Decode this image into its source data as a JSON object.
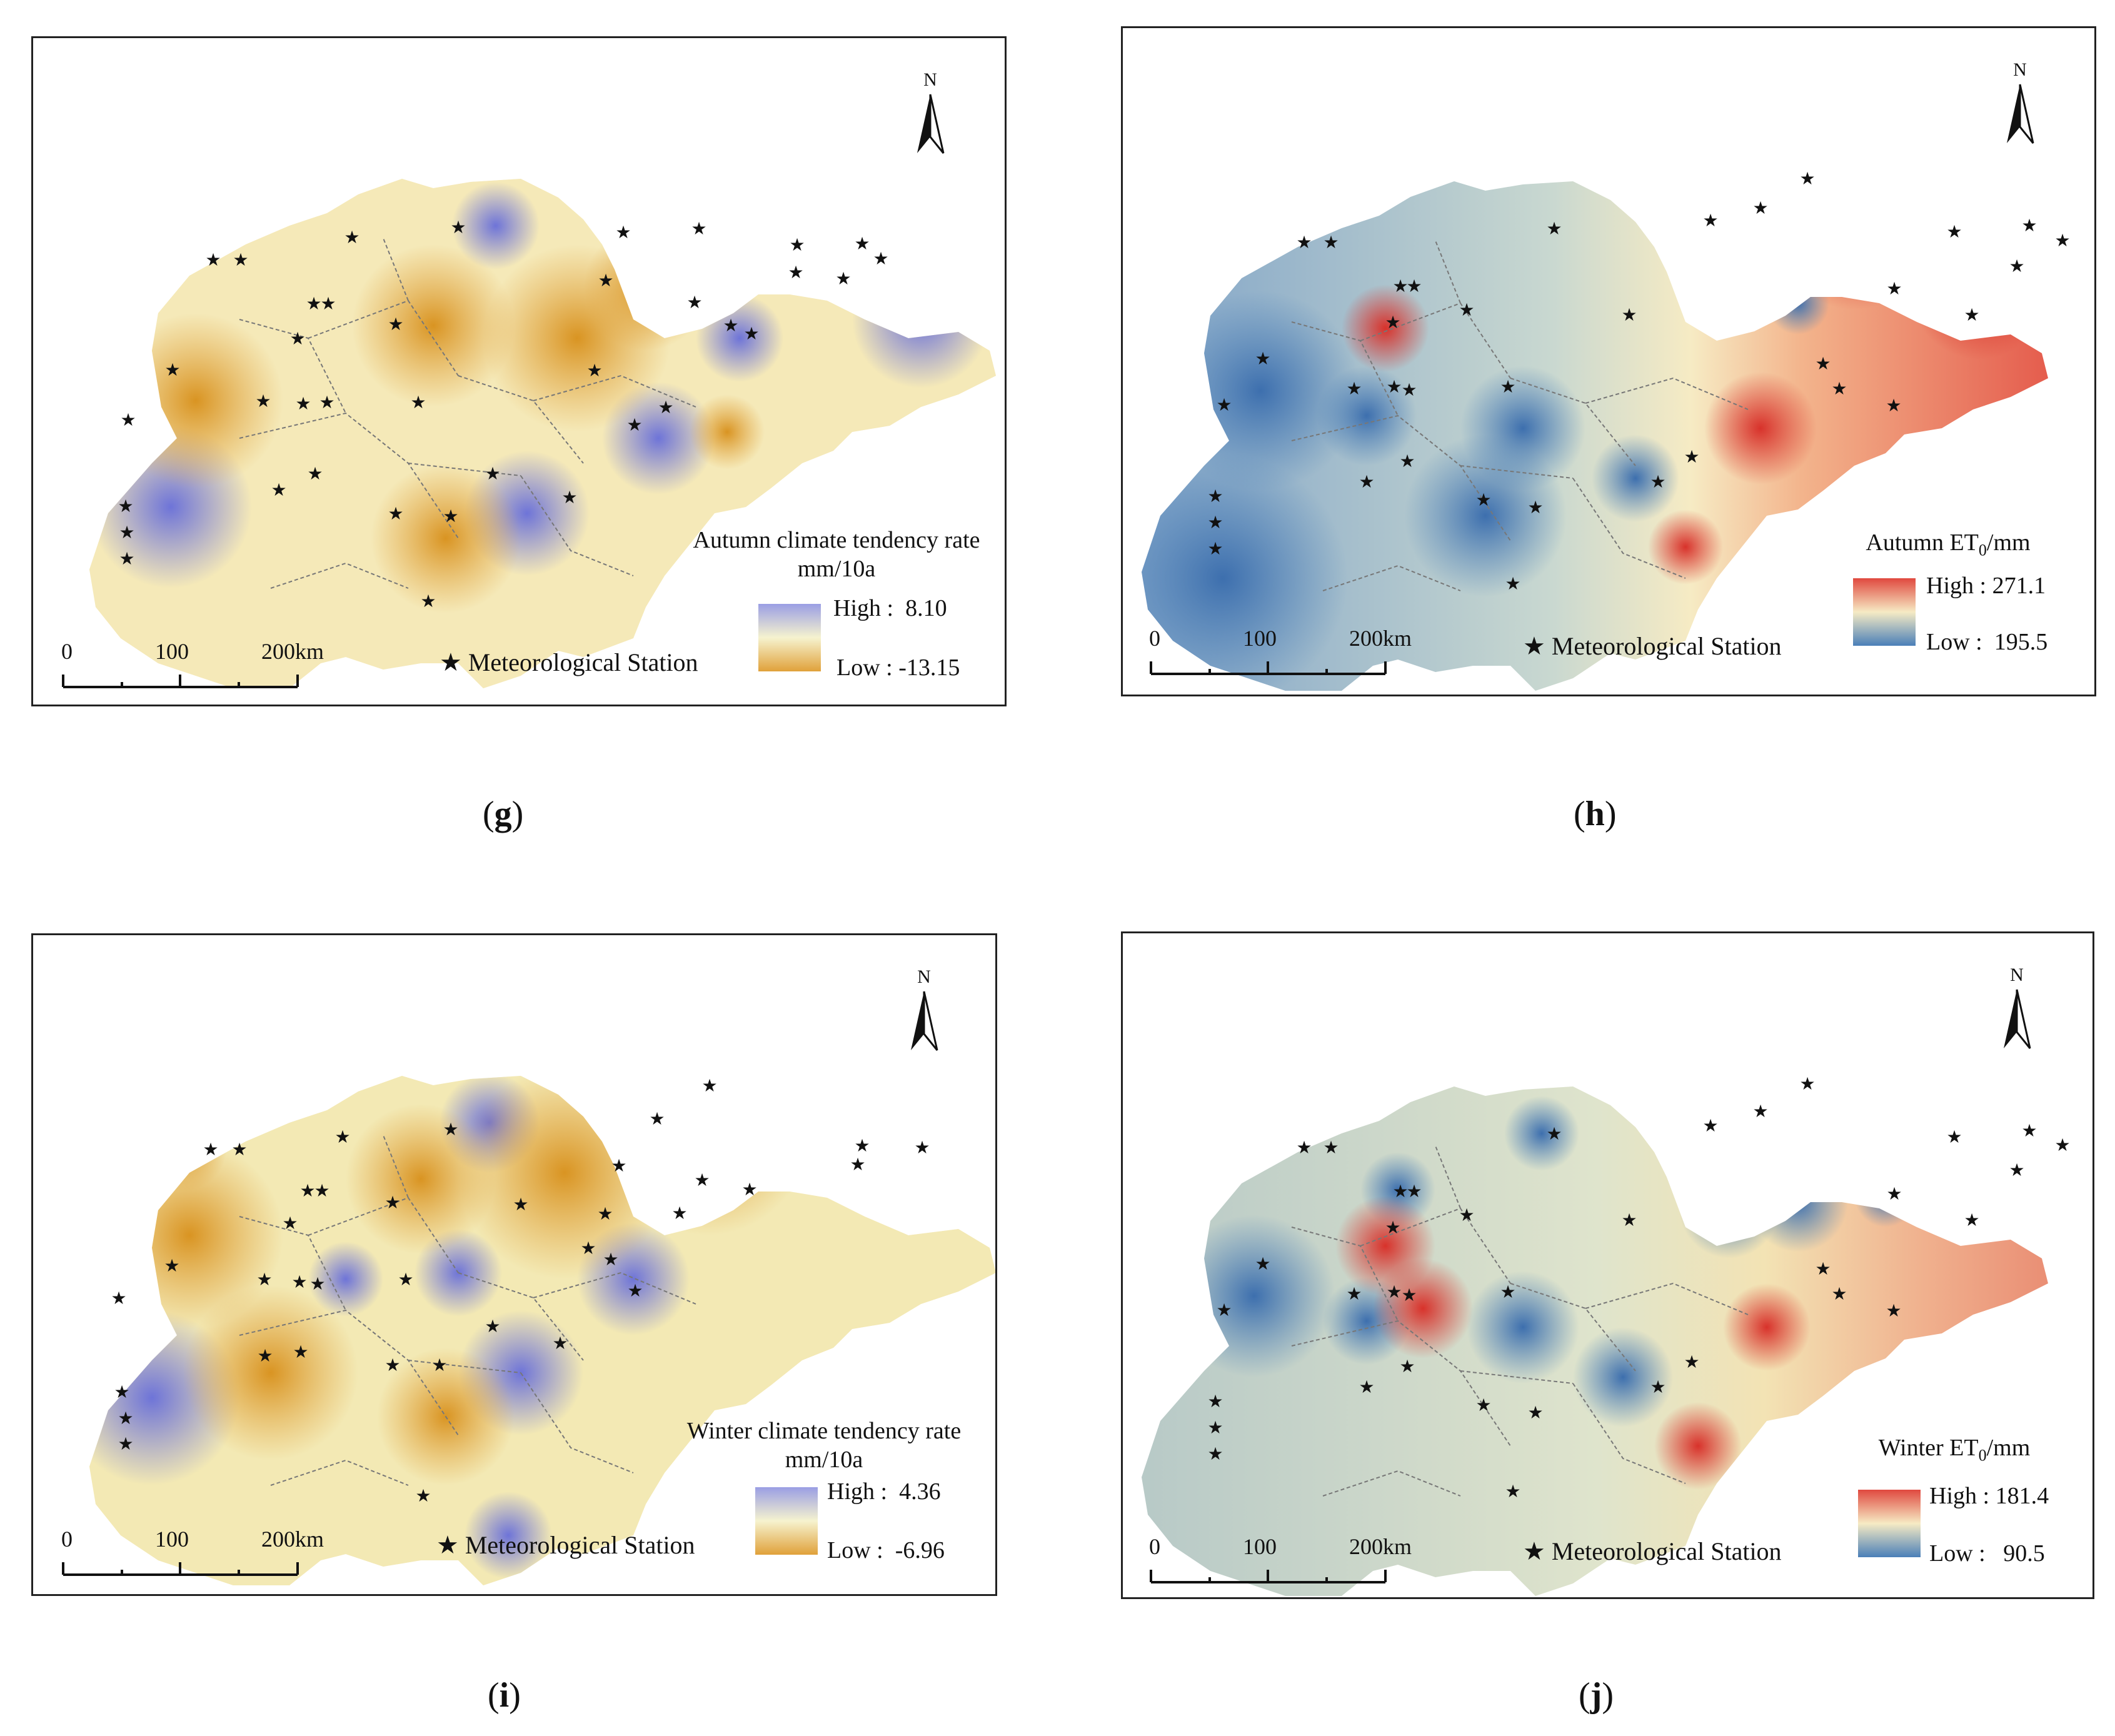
{
  "colors": {
    "autumn_tend_high": "#6e74d8",
    "autumn_tend_low": "#e0a13a",
    "et0_high": "#d8322b",
    "et0_low": "#4a7fb8",
    "neutral": "#f5f0c8",
    "frame": "#222222"
  },
  "north_label": "N",
  "station_legend": "Meteorological Station",
  "scale_labels": [
    "0",
    "100",
    "200km"
  ],
  "panels": [
    {
      "id": "g",
      "caption_open": "(",
      "caption_letter": "g",
      "caption_close": ")",
      "legend_title_line1": "Autumn climate tendency rate",
      "legend_title_line2": "mm/10a",
      "high_label": "High :",
      "high_value": "8.10",
      "low_label": "Low :",
      "low_value": "-13.15"
    },
    {
      "id": "h",
      "caption_open": "(",
      "caption_letter": "h",
      "caption_close": ")",
      "legend_title_line1": "Autumn ET",
      "legend_title_sub": "0",
      "legend_title_suffix": "/mm",
      "high_label": "High :",
      "high_value": "271.1",
      "low_label": "Low :",
      "low_value": "195.5"
    },
    {
      "id": "i",
      "caption_open": "(",
      "caption_letter": "i",
      "caption_close": ")",
      "legend_title_line1": "Winter climate tendency rate",
      "legend_title_line2": "mm/10a",
      "high_label": "High :",
      "high_value": "4.36",
      "low_label": "Low :",
      "low_value": "-6.96"
    },
    {
      "id": "j",
      "caption_open": "(",
      "caption_letter": "j",
      "caption_close": ")",
      "legend_title_line1": "Winter ET",
      "legend_title_sub": "0",
      "legend_title_suffix": "/mm",
      "high_label": "High :",
      "high_value": "181.4",
      "low_label": "Low :",
      "low_value": "90.5"
    }
  ]
}
